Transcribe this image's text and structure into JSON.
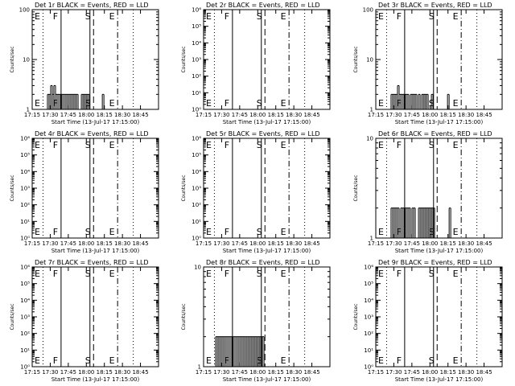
{
  "figure": {
    "ink": "#000000",
    "background": "#ffffff",
    "grid": false,
    "legend": "none"
  },
  "chart_data": [
    {
      "type": "line",
      "title": "Det 1r BLACK = Events, RED = LLD",
      "xlabel": "Start Time (13-Jul-17 17:15:00)",
      "ylabel": "Counts/sec",
      "x_ticks": [
        "17:15",
        "17:30",
        "17:45",
        "18:00",
        "18:15",
        "18:30",
        "18:45"
      ],
      "y_scale": "log",
      "ylim": [
        1,
        100
      ],
      "y_ticks": [
        "1",
        "10",
        "100"
      ],
      "markers": [
        {
          "label": "E",
          "time": "17:24",
          "style": "dotted"
        },
        {
          "label": "F",
          "time": "17:39",
          "style": "solid"
        },
        {
          "label": "",
          "time": "18:03",
          "style": "solid"
        },
        {
          "label": "S",
          "time": "18:06",
          "style": "dashed"
        },
        {
          "label": "E",
          "time": "18:26",
          "style": "dashdot"
        },
        {
          "label": "",
          "time": "18:39",
          "style": "dotted"
        }
      ],
      "series": [
        {
          "values": [
            0,
            0,
            2,
            2,
            3,
            2,
            3,
            2,
            2,
            2,
            2,
            2,
            2,
            2,
            2,
            2,
            2,
            2,
            2,
            2,
            2,
            0,
            0,
            2,
            2,
            2,
            2,
            2,
            0,
            0,
            0,
            0,
            0,
            0,
            0,
            0,
            2,
            0,
            0,
            0,
            0,
            0,
            0,
            0
          ],
          "x_start": "17:25",
          "x_end": "18:24"
        }
      ]
    },
    {
      "type": "line",
      "title": "Det 2r BLACK = Events, RED = LLD",
      "xlabel": "Start Time (13-Jul-17 17:15:00)",
      "ylabel": "Counts/sec",
      "x_ticks": [
        "17:15",
        "17:30",
        "17:45",
        "18:00",
        "18:15",
        "18:30",
        "18:45"
      ],
      "y_scale": "log",
      "ylim": [
        1,
        1000000
      ],
      "y_ticks": [
        "10⁰",
        "10¹",
        "10²",
        "10³",
        "10⁴",
        "10⁵",
        "10⁶"
      ],
      "markers": [
        {
          "label": "E",
          "time": "17:24",
          "style": "dotted"
        },
        {
          "label": "F",
          "time": "17:39",
          "style": "solid"
        },
        {
          "label": "",
          "time": "18:03",
          "style": "solid"
        },
        {
          "label": "S",
          "time": "18:06",
          "style": "dashed"
        },
        {
          "label": "E",
          "time": "18:26",
          "style": "dashdot"
        },
        {
          "label": "",
          "time": "18:39",
          "style": "dotted"
        }
      ],
      "series": []
    },
    {
      "type": "line",
      "title": "Det 3r BLACK = Events, RED = LLD",
      "xlabel": "Start Time (13-Jul-17 17:15:00)",
      "ylabel": "Counts/sec",
      "x_ticks": [
        "17:15",
        "17:30",
        "17:45",
        "18:00",
        "18:15",
        "18:30",
        "18:45"
      ],
      "y_scale": "log",
      "ylim": [
        1,
        100
      ],
      "y_ticks": [
        "1",
        "10",
        "100"
      ],
      "markers": [
        {
          "label": "E",
          "time": "17:24",
          "style": "dotted"
        },
        {
          "label": "F",
          "time": "17:39",
          "style": "solid"
        },
        {
          "label": "",
          "time": "18:03",
          "style": "solid"
        },
        {
          "label": "S",
          "time": "18:06",
          "style": "dashed"
        },
        {
          "label": "E",
          "time": "18:26",
          "style": "dashdot"
        },
        {
          "label": "",
          "time": "18:39",
          "style": "dotted"
        }
      ],
      "series": [
        {
          "values": [
            0,
            0,
            2,
            2,
            2,
            2,
            3,
            2,
            2,
            2,
            2,
            2,
            2,
            0,
            2,
            2,
            2,
            2,
            0,
            2,
            0,
            2,
            2,
            2,
            2,
            0,
            0,
            2,
            0,
            0,
            0,
            0,
            0,
            0,
            0,
            0,
            0,
            2,
            0,
            0,
            0,
            0,
            0,
            0
          ],
          "x_start": "17:25",
          "x_end": "18:24"
        }
      ]
    },
    {
      "type": "line",
      "title": "Det 4r BLACK = Events, RED = LLD",
      "xlabel": "Start Time (13-Jul-17 17:15:00)",
      "ylabel": "Counts/sec",
      "x_ticks": [
        "17:15",
        "17:30",
        "17:45",
        "18:00",
        "18:15",
        "18:30",
        "18:45"
      ],
      "y_scale": "log",
      "ylim": [
        1,
        1000000
      ],
      "y_ticks": [
        "10⁰",
        "10¹",
        "10²",
        "10³",
        "10⁴",
        "10⁵",
        "10⁶"
      ],
      "markers": [
        {
          "label": "E",
          "time": "17:24",
          "style": "dotted"
        },
        {
          "label": "F",
          "time": "17:39",
          "style": "solid"
        },
        {
          "label": "",
          "time": "18:03",
          "style": "solid"
        },
        {
          "label": "S",
          "time": "18:06",
          "style": "dashed"
        },
        {
          "label": "E",
          "time": "18:26",
          "style": "dashdot"
        },
        {
          "label": "",
          "time": "18:39",
          "style": "dotted"
        }
      ],
      "series": []
    },
    {
      "type": "line",
      "title": "Det 5r BLACK = Events, RED = LLD",
      "xlabel": "Start Time (13-Jul-17 17:15:00)",
      "ylabel": "Counts/sec",
      "x_ticks": [
        "17:15",
        "17:30",
        "17:45",
        "18:00",
        "18:15",
        "18:30",
        "18:45"
      ],
      "y_scale": "log",
      "ylim": [
        1,
        1000000
      ],
      "y_ticks": [
        "10⁰",
        "10¹",
        "10²",
        "10³",
        "10⁴",
        "10⁵",
        "10⁶"
      ],
      "markers": [
        {
          "label": "E",
          "time": "17:24",
          "style": "dotted"
        },
        {
          "label": "F",
          "time": "17:39",
          "style": "solid"
        },
        {
          "label": "",
          "time": "18:03",
          "style": "solid"
        },
        {
          "label": "S",
          "time": "18:06",
          "style": "dashed"
        },
        {
          "label": "E",
          "time": "18:26",
          "style": "dashdot"
        },
        {
          "label": "",
          "time": "18:39",
          "style": "dotted"
        }
      ],
      "series": []
    },
    {
      "type": "line",
      "title": "Det 6r BLACK = Events, RED = LLD",
      "xlabel": "Start Time (13-Jul-17 17:15:00)",
      "ylabel": "Counts/sec",
      "x_ticks": [
        "17:15",
        "17:30",
        "17:45",
        "18:00",
        "18:15",
        "18:30",
        "18:45"
      ],
      "y_scale": "log",
      "ylim": [
        1,
        10
      ],
      "y_ticks": [
        "1",
        "10"
      ],
      "markers": [
        {
          "label": "E",
          "time": "17:24",
          "style": "dotted"
        },
        {
          "label": "F",
          "time": "17:39",
          "style": "solid"
        },
        {
          "label": "",
          "time": "18:03",
          "style": "solid"
        },
        {
          "label": "S",
          "time": "18:06",
          "style": "dashed"
        },
        {
          "label": "E",
          "time": "18:26",
          "style": "dashdot"
        },
        {
          "label": "",
          "time": "18:39",
          "style": "dotted"
        }
      ],
      "series": [
        {
          "values": [
            0,
            0,
            2,
            2,
            2,
            2,
            2,
            0,
            2,
            2,
            2,
            2,
            2,
            2,
            0,
            2,
            2,
            0,
            0,
            2,
            2,
            2,
            2,
            2,
            2,
            2,
            2,
            2,
            2,
            0,
            0,
            0,
            0,
            0,
            0,
            0,
            0,
            0,
            2,
            0,
            0,
            0,
            0,
            0
          ],
          "x_start": "17:25",
          "x_end": "18:24"
        }
      ]
    },
    {
      "type": "line",
      "title": "Det 7r BLACK = Events, RED = LLD",
      "xlabel": "Start Time (13-Jul-17 17:15:00)",
      "ylabel": "Counts/sec",
      "x_ticks": [
        "17:15",
        "17:30",
        "17:45",
        "18:00",
        "18:15",
        "18:30",
        "18:45"
      ],
      "y_scale": "log",
      "ylim": [
        1,
        1000000
      ],
      "y_ticks": [
        "10⁰",
        "10¹",
        "10²",
        "10³",
        "10⁴",
        "10⁵",
        "10⁶"
      ],
      "markers": [
        {
          "label": "E",
          "time": "17:24",
          "style": "dotted"
        },
        {
          "label": "F",
          "time": "17:39",
          "style": "solid"
        },
        {
          "label": "",
          "time": "18:03",
          "style": "solid"
        },
        {
          "label": "S",
          "time": "18:06",
          "style": "dashed"
        },
        {
          "label": "E",
          "time": "18:26",
          "style": "dashdot"
        },
        {
          "label": "",
          "time": "18:39",
          "style": "dotted"
        }
      ],
      "series": []
    },
    {
      "type": "line",
      "title": "Det 8r BLACK = Events, RED = LLD",
      "xlabel": "Start Time (13-Jul-17 17:15:00)",
      "ylabel": "Counts/sec",
      "x_ticks": [
        "17:15",
        "17:30",
        "17:45",
        "18:00",
        "18:15",
        "18:30",
        "18:45"
      ],
      "y_scale": "log",
      "ylim": [
        1,
        10
      ],
      "y_ticks": [
        "1",
        "10"
      ],
      "markers": [
        {
          "label": "E",
          "time": "17:24",
          "style": "dotted"
        },
        {
          "label": "F",
          "time": "17:39",
          "style": "solid"
        },
        {
          "label": "",
          "time": "18:03",
          "style": "solid"
        },
        {
          "label": "S",
          "time": "18:06",
          "style": "dashed"
        },
        {
          "label": "E",
          "time": "18:26",
          "style": "dashdot"
        },
        {
          "label": "",
          "time": "18:39",
          "style": "dotted"
        }
      ],
      "series": [
        {
          "values": [
            2,
            2,
            2,
            2,
            2,
            2,
            2,
            2,
            2,
            2,
            2,
            2,
            2,
            2,
            2,
            2,
            2,
            2,
            2,
            2,
            2,
            2,
            2,
            2,
            2,
            2,
            2,
            2,
            2,
            2,
            0,
            0,
            0,
            0,
            0,
            0,
            0,
            0,
            0,
            0,
            0,
            0,
            0,
            0
          ],
          "x_start": "17:25",
          "x_end": "18:24"
        }
      ]
    },
    {
      "type": "line",
      "title": "Det 9r BLACK = Events, RED = LLD",
      "xlabel": "Start Time (13-Jul-17 17:15:00)",
      "ylabel": "Counts/sec",
      "x_ticks": [
        "17:15",
        "17:30",
        "17:45",
        "18:00",
        "18:15",
        "18:30",
        "18:45"
      ],
      "y_scale": "log",
      "ylim": [
        1,
        1000000
      ],
      "y_ticks": [
        "10⁰",
        "10¹",
        "10²",
        "10³",
        "10⁴",
        "10⁵",
        "10⁶"
      ],
      "markers": [
        {
          "label": "E",
          "time": "17:24",
          "style": "dotted"
        },
        {
          "label": "F",
          "time": "17:39",
          "style": "solid"
        },
        {
          "label": "",
          "time": "18:03",
          "style": "solid"
        },
        {
          "label": "S",
          "time": "18:06",
          "style": "dashed"
        },
        {
          "label": "E",
          "time": "18:26",
          "style": "dashdot"
        },
        {
          "label": "",
          "time": "18:39",
          "style": "dotted"
        }
      ],
      "series": []
    }
  ]
}
